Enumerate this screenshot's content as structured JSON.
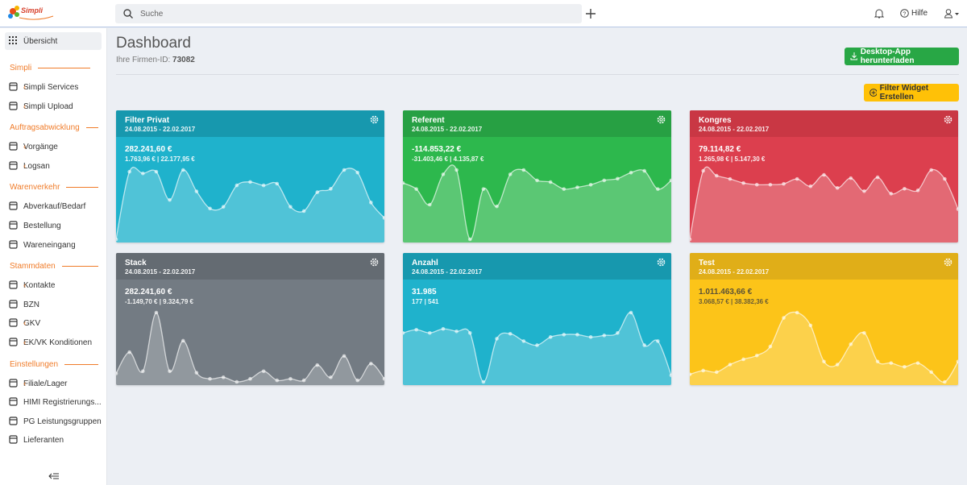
{
  "topbar": {
    "search_placeholder": "Suche",
    "help": "Hilfe"
  },
  "sidebar": {
    "top": "Übersicht",
    "sections": [
      {
        "title": "Simpli",
        "items": [
          {
            "label": "Simpli Services",
            "expandable": true
          },
          {
            "label": "Simpli Upload",
            "expandable": true
          }
        ]
      },
      {
        "title": "Auftragsabwicklung",
        "items": [
          {
            "label": "Vorgänge",
            "expandable": true
          },
          {
            "label": "Logsan",
            "expandable": true
          }
        ]
      },
      {
        "title": "Warenverkehr",
        "items": [
          {
            "label": "Abverkauf/Bedarf",
            "expandable": false
          },
          {
            "label": "Bestellung",
            "expandable": false
          },
          {
            "label": "Wareneingang",
            "expandable": false
          }
        ]
      },
      {
        "title": "Stammdaten",
        "items": [
          {
            "label": "Kontakte",
            "expandable": true
          },
          {
            "label": "BZN",
            "expandable": false
          },
          {
            "label": "GKV",
            "expandable": true
          },
          {
            "label": "EK/VK Konditionen",
            "expandable": true
          }
        ]
      },
      {
        "title": "Einstellungen",
        "items": [
          {
            "label": "Filiale/Lager",
            "expandable": true
          },
          {
            "label": "HIMI Registrierungs...",
            "expandable": false
          },
          {
            "label": "PG Leistungsgruppen",
            "expandable": false
          },
          {
            "label": "Lieferanten",
            "expandable": false
          }
        ]
      }
    ]
  },
  "header": {
    "title": "Dashboard",
    "company_id_label": "Ihre Firmen-ID:",
    "company_id": "73082"
  },
  "buttons": {
    "download": "Desktop-App herunterladen",
    "create_widget": "Filter Widget Erstellen"
  },
  "widgets": [
    {
      "title": "Filter Privat",
      "date_range": "24.08.2015 - 22.02.2017",
      "value": "282.241,60 €",
      "subvalue": "1.763,96 € | 22.177,95 €",
      "header_color": "#1798ae",
      "color": "#1fb2cc",
      "text_color": "#ffffff",
      "sparkline": [
        5,
        84,
        82,
        84,
        51,
        86,
        61,
        41,
        43,
        68,
        72,
        68,
        70,
        43,
        38,
        60,
        64,
        86,
        83,
        48,
        30
      ]
    },
    {
      "title": "Referent",
      "date_range": "24.08.2015 - 22.02.2017",
      "value": "-114.853,22 €",
      "subvalue": "-31.403,46 € | 4.135,87 €",
      "header_color": "#27a043",
      "color": "#2db84d",
      "text_color": "#ffffff",
      "sparkline": [
        25,
        18,
        0,
        35,
        40,
        -40,
        18,
        -2,
        35,
        40,
        28,
        26,
        18,
        20,
        23,
        28,
        30,
        37,
        39,
        18,
        28
      ]
    },
    {
      "title": "Kongres",
      "date_range": "24.08.2015 - 22.02.2017",
      "value": "79.114,82 €",
      "subvalue": "1.265,98 € | 5.147,30 €",
      "header_color": "#c93744",
      "color": "#dc3f4e",
      "text_color": "#ffffff",
      "sparkline": [
        5,
        89,
        83,
        79,
        74,
        72,
        72,
        73,
        79,
        70,
        84,
        68,
        80,
        64,
        81,
        61,
        67,
        65,
        90,
        79,
        42
      ]
    },
    {
      "title": "Stack",
      "date_range": "24.08.2015 - 22.02.2017",
      "value": "282.241,60 €",
      "subvalue": "-1.149,70 € | 9.324,79 €",
      "header_color": "#646b72",
      "color": "#737b83",
      "text_color": "#ffffff",
      "sparkline": [
        15,
        43,
        18,
        95,
        18,
        58,
        16,
        8,
        10,
        4,
        8,
        18,
        6,
        8,
        6,
        26,
        10,
        38,
        6,
        28,
        8
      ]
    },
    {
      "title": "Anzahl",
      "date_range": "24.08.2015 - 22.02.2017",
      "value": "31.985",
      "subvalue": "177 | 541",
      "header_color": "#1798ae",
      "color": "#1fb2cc",
      "text_color": "#ffffff",
      "sparkline": [
        68,
        72,
        68,
        73,
        70,
        68,
        8,
        61,
        67,
        58,
        53,
        63,
        66,
        66,
        63,
        65,
        68,
        93,
        53,
        58,
        16
      ]
    },
    {
      "title": "Test",
      "date_range": "24.08.2015 - 22.02.2017",
      "value": "1.011.463,66 €",
      "subvalue": "3.068,57 € | 38.382,36 €",
      "header_color": "#e0ae18",
      "color": "#fcc419",
      "text_color": "#5c5236",
      "sparkline": [
        13,
        18,
        16,
        26,
        33,
        38,
        50,
        88,
        95,
        78,
        30,
        26,
        53,
        68,
        30,
        28,
        23,
        28,
        16,
        3,
        30
      ]
    }
  ]
}
